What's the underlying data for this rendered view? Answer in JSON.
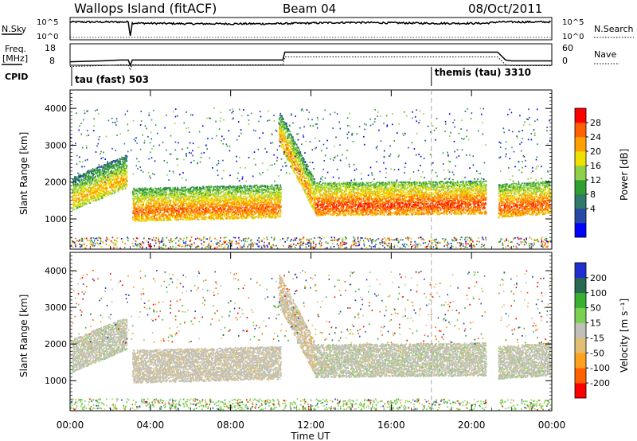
{
  "header": {
    "station": "Wallops Island (fitACF)",
    "beam": "Beam 04",
    "date": "08/Oct/2011"
  },
  "noise_panel": {
    "left_label": "N.Sky",
    "right_label": "N.Search",
    "left_ticks": [
      "10^5",
      "10^0"
    ],
    "right_ticks": [
      "10^5",
      "10^0"
    ]
  },
  "freq_panel": {
    "left_label_1": "Freq.",
    "left_label_2": "[MHz]",
    "right_label": "Nave",
    "left_ticks": [
      "18",
      "8"
    ],
    "right_ticks": [
      "60",
      "0"
    ]
  },
  "cpid": {
    "label": "CPID",
    "first": "tau (fast) 503",
    "second": "themis (tau) 3310",
    "switch_hour": 18.0
  },
  "power_panel": {
    "ylabel": "Slant Range [km]",
    "yticks": [
      "4000",
      "3000",
      "2000",
      "1000"
    ],
    "colorbar_label": "Power [dB]",
    "colorbar_ticks": [
      "28",
      "24",
      "20",
      "16",
      "12",
      "8",
      "4"
    ],
    "colors": [
      "#0000ff",
      "#2848a8",
      "#2f7a6a",
      "#2fa02f",
      "#8fd04a",
      "#f0e000",
      "#ffa000",
      "#ff6000",
      "#ff0000"
    ]
  },
  "velocity_panel": {
    "ylabel": "Slant Range [km]",
    "yticks": [
      "4000",
      "3000",
      "2000",
      "1000"
    ],
    "colorbar_label": "Velocity [m s⁻¹]",
    "colorbar_ticks": [
      "200",
      "100",
      "50",
      "15",
      "-15",
      "-50",
      "-100",
      "-200"
    ],
    "colors": [
      "#2030d0",
      "#2a6a50",
      "#3ab030",
      "#7ad050",
      "#c0c0b8",
      "#e0c070",
      "#ffa020",
      "#ff6000",
      "#ff0000"
    ]
  },
  "xaxis": {
    "label": "Time UT",
    "ticks": [
      "00:00",
      "04:00",
      "08:00",
      "12:00",
      "16:00",
      "20:00",
      "00:00"
    ]
  },
  "chart_data": {
    "type": "heatmap",
    "title": "Wallops Island (fitACF)  Beam 04  08/Oct/2011",
    "xlabel": "Time UT",
    "ylabel": "Slant Range [km]",
    "xlim_hours": [
      0,
      24
    ],
    "ylim_km": [
      180,
      4500
    ],
    "data_gaps_hours": [
      [
        2.9,
        3.0
      ],
      [
        20.7,
        21.3
      ]
    ],
    "power_db_range": [
      0,
      30
    ],
    "velocity_range": [
      -200,
      200
    ],
    "noise_sky_profile": {
      "hours": [
        0,
        2.9,
        3.0,
        3.1,
        6,
        10,
        14,
        18,
        20.7,
        21.3,
        24
      ],
      "level": [
        0.8,
        0.8,
        0.2,
        0.75,
        0.72,
        0.72,
        0.78,
        0.74,
        0.74,
        0.8,
        0.8
      ]
    },
    "frequency_mhz_profile": {
      "hours": [
        0,
        1.5,
        2.5,
        2.9,
        3.0,
        3.1,
        10.6,
        10.7,
        20.7,
        21.3,
        21.7,
        22.0,
        24
      ],
      "mhz": [
        10,
        10.5,
        11,
        11,
        8,
        11,
        11,
        15.5,
        15.5,
        15.5,
        11,
        10.5,
        10.5
      ]
    },
    "main_echo_bands": [
      {
        "start_hour": 0.1,
        "end_hour": 2.8,
        "range_start_km": 1500,
        "range_end_km": 2100,
        "typical_power_db": 22,
        "typical_velocity": 0
      },
      {
        "start_hour": 3.1,
        "end_hour": 10.5,
        "range_start_km": 1200,
        "range_end_km": 1300,
        "typical_power_db": 26,
        "typical_velocity": -20
      },
      {
        "start_hour": 10.4,
        "end_hour": 12.2,
        "range_start_km": 3300,
        "range_end_km": 1400,
        "typical_power_db": 24,
        "typical_velocity": -40
      },
      {
        "start_hour": 12.2,
        "end_hour": 20.7,
        "range_start_km": 1350,
        "range_end_km": 1400,
        "typical_power_db": 28,
        "typical_velocity": 0
      },
      {
        "start_hour": 21.3,
        "end_hour": 23.9,
        "range_start_km": 1300,
        "range_end_km": 1400,
        "typical_power_db": 27,
        "typical_velocity": 0
      }
    ],
    "ground_scatter_band_km": [
      200,
      500
    ]
  }
}
